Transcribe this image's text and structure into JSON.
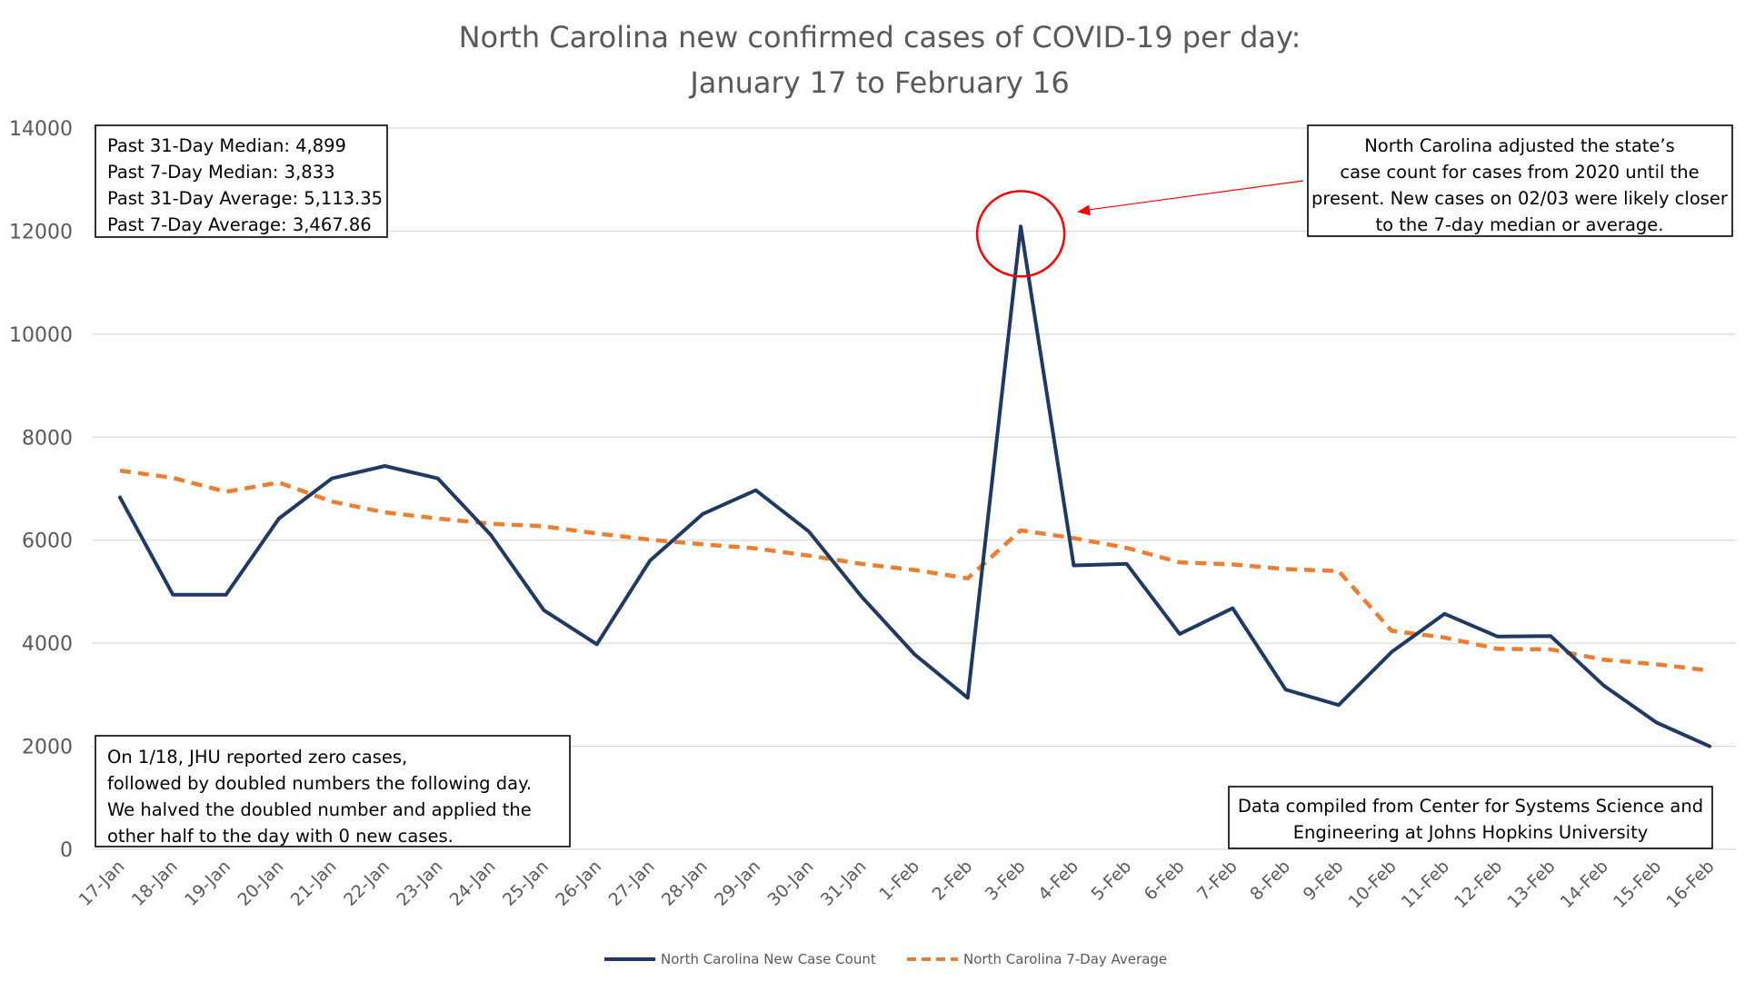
{
  "chart_data": {
    "type": "line",
    "title": [
      "North Carolina new confirmed cases of COVID-19 per day:",
      "January 17 to February 16"
    ],
    "categories": [
      "17-Jan",
      "18-Jan",
      "19-Jan",
      "20-Jan",
      "21-Jan",
      "22-Jan",
      "23-Jan",
      "24-Jan",
      "25-Jan",
      "26-Jan",
      "27-Jan",
      "28-Jan",
      "29-Jan",
      "30-Jan",
      "31-Jan",
      "1-Feb",
      "2-Feb",
      "3-Feb",
      "4-Feb",
      "5-Feb",
      "6-Feb",
      "7-Feb",
      "8-Feb",
      "9-Feb",
      "10-Feb",
      "11-Feb",
      "12-Feb",
      "13-Feb",
      "14-Feb",
      "15-Feb",
      "16-Feb"
    ],
    "ylim": [
      0,
      14000
    ],
    "yticks": [
      0,
      2000,
      4000,
      6000,
      8000,
      10000,
      12000,
      14000
    ],
    "grid": true,
    "legend_position": "bottom",
    "series": [
      {
        "name": "North Carolina New Case Count",
        "color": "#203864",
        "style": "solid",
        "values": [
          6830,
          4940,
          4940,
          6420,
          7200,
          7440,
          7200,
          6100,
          4640,
          3980,
          5600,
          6510,
          6970,
          6170,
          4900,
          3780,
          2940,
          12090,
          5510,
          5540,
          4180,
          4680,
          3100,
          2800,
          3830,
          4570,
          4130,
          4140,
          3180,
          2460,
          2000
        ]
      },
      {
        "name": "North Carolina 7-Day Average",
        "color": "#ED7D31",
        "style": "dashed",
        "values": [
          7350,
          7210,
          6940,
          7120,
          6750,
          6540,
          6420,
          6320,
          6270,
          6130,
          6010,
          5920,
          5840,
          5700,
          5540,
          5420,
          5260,
          6190,
          6040,
          5850,
          5570,
          5530,
          5440,
          5400,
          4240,
          4110,
          3890,
          3880,
          3680,
          3590,
          3470
        ]
      }
    ],
    "annotations": {
      "stats_box": [
        "Past 31-Day Median: 4,899",
        "Past 7-Day Median: 3,833",
        "Past 31-Day Average: 5,113.35",
        "Past 7-Day Average: 3,467.86"
      ],
      "adjustment_note": [
        "North Carolina adjusted the state’s",
        "case count for cases from 2020 until the",
        "present. New cases on 02/03 were likely closer",
        "to the 7-day median or average."
      ],
      "jhu_note": [
        "On 1/18, JHU reported zero cases,",
        "followed by doubled numbers the following day.",
        "We halved the doubled number and applied the",
        "other half to the day with 0 new cases."
      ],
      "source_note": [
        "Data compiled from Center for Systems Science and",
        "Engineering at Johns Hopkins University"
      ],
      "highlight_point": "3-Feb",
      "highlight_color": "#FF0000"
    }
  }
}
